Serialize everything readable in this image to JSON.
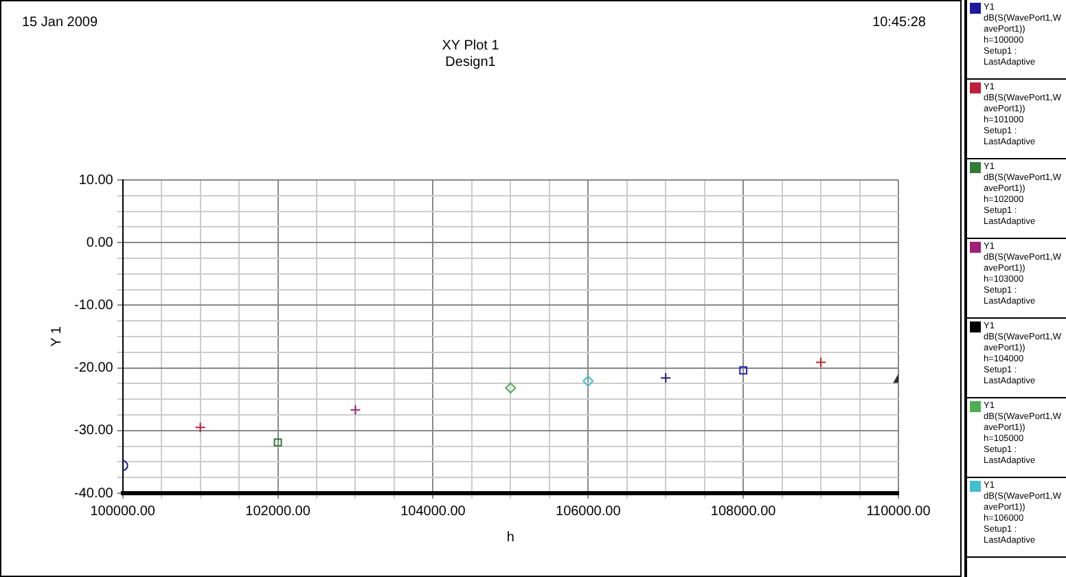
{
  "chart_data": {
    "type": "scatter",
    "title": "XY Plot 1",
    "subtitle": "Design1",
    "xlabel": "h",
    "ylabel": "Y 1",
    "annotations": [
      "15 Jan 2009",
      "10:45:28"
    ],
    "xlim": [
      100000,
      110000
    ],
    "xticks": [
      {
        "value": 100000,
        "label": "100000.00"
      },
      {
        "value": 100500,
        "label": null
      },
      {
        "value": 101000,
        "label": null
      },
      {
        "value": 101500,
        "label": null
      },
      {
        "value": 102000,
        "label": "102000.00"
      },
      {
        "value": 102500,
        "label": null
      },
      {
        "value": 103000,
        "label": null
      },
      {
        "value": 103500,
        "label": null
      },
      {
        "value": 104000,
        "label": "104000.00"
      },
      {
        "value": 104500,
        "label": null
      },
      {
        "value": 105000,
        "label": null
      },
      {
        "value": 105500,
        "label": null
      },
      {
        "value": 106000,
        "label": "106000.00"
      },
      {
        "value": 106500,
        "label": null
      },
      {
        "value": 107000,
        "label": null
      },
      {
        "value": 107500,
        "label": null
      },
      {
        "value": 108000,
        "label": "108000.00"
      },
      {
        "value": 108500,
        "label": null
      },
      {
        "value": 109000,
        "label": null
      },
      {
        "value": 109500,
        "label": null
      },
      {
        "value": 110000,
        "label": "110000.00"
      }
    ],
    "ylim": [
      -40,
      10
    ],
    "yticks": [
      {
        "value": -40,
        "label": "-40.00"
      },
      {
        "value": -37.5,
        "label": null
      },
      {
        "value": -35,
        "label": null
      },
      {
        "value": -32.5,
        "label": null
      },
      {
        "value": -30,
        "label": "-30.00"
      },
      {
        "value": -27.5,
        "label": null
      },
      {
        "value": -25,
        "label": null
      },
      {
        "value": -22.5,
        "label": null
      },
      {
        "value": -20,
        "label": "-20.00"
      },
      {
        "value": -17.5,
        "label": null
      },
      {
        "value": -15,
        "label": null
      },
      {
        "value": -12.5,
        "label": null
      },
      {
        "value": -10,
        "label": "-10.00"
      },
      {
        "value": -7.5,
        "label": null
      },
      {
        "value": -5,
        "label": null
      },
      {
        "value": -2.5,
        "label": null
      },
      {
        "value": 0,
        "label": "0.00"
      },
      {
        "value": 2.5,
        "label": null
      },
      {
        "value": 5,
        "label": null
      },
      {
        "value": 7.5,
        "label": null
      },
      {
        "value": 10,
        "label": "10.00"
      }
    ],
    "grid": true,
    "legend": "right",
    "series": [
      {
        "name": "Y1\ndB(S(WavePort1,WavePort1))\nh=100000\nSetup1 : LastAdaptive",
        "color": "#1a1aa0",
        "marker": "circle",
        "x": [
          100000
        ],
        "values": [
          -35.6
        ]
      },
      {
        "name": "Y1\ndB(S(WavePort1,WavePort1))\nh=101000\nSetup1 : LastAdaptive",
        "color": "#c0203a",
        "marker": "cross",
        "x": [
          101000
        ],
        "values": [
          -29.5
        ]
      },
      {
        "name": "Y1\ndB(S(WavePort1,WavePort1))\nh=102000\nSetup1 : LastAdaptive",
        "color": "#2e7d32",
        "marker": "square",
        "x": [
          102000
        ],
        "values": [
          -31.9
        ]
      },
      {
        "name": "Y1\ndB(S(WavePort1,WavePort1))\nh=103000\nSetup1 : LastAdaptive",
        "color": "#a0207a",
        "marker": "cross",
        "x": [
          103000
        ],
        "values": [
          -26.7
        ]
      },
      {
        "name": "Y1\ndB(S(WavePort1,WavePort1))\nh=104000\nSetup1 : LastAdaptive",
        "color": "#000000",
        "marker": "triangle"
      },
      {
        "name": "Y1\ndB(S(WavePort1,WavePort1))\nh=105000\nSetup1 : LastAdaptive",
        "color": "#4caf50",
        "marker": "diamond",
        "x": [
          105000
        ],
        "values": [
          -23.2
        ]
      },
      {
        "name": "Y1\ndB(S(WavePort1,WavePort1))\nh=106000\nSetup1 : LastAdaptive",
        "color": "#40c0d0",
        "marker": "diamond",
        "x": [
          106000
        ],
        "values": [
          -22.1
        ]
      },
      {
        "color": "#202070",
        "marker": "cross",
        "x": [
          107000
        ],
        "values": [
          -21.6
        ]
      },
      {
        "color": "#2020c0",
        "marker": "square",
        "x": [
          108000
        ],
        "values": [
          -20.4
        ]
      },
      {
        "color": "#c02020",
        "marker": "cross",
        "x": [
          109000
        ],
        "values": [
          -19.1
        ]
      },
      {
        "color": "#303030",
        "marker": "triangle",
        "x": [
          110000
        ],
        "values": [
          -21.9
        ]
      }
    ]
  }
}
